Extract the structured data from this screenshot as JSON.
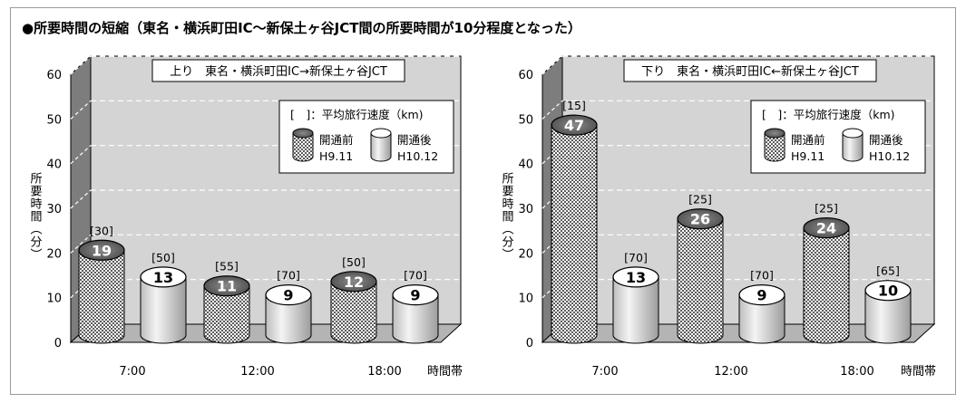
{
  "title": "●所要時間の短縮（東名・横浜町田IC〜新保土ヶ谷JCT間の所要時間が10分程度となった）",
  "chart_data": [
    {
      "type": "bar",
      "title": "上り　東名・横浜町田IC→新保土ヶ谷JCT",
      "ylabel": "所要時間（分）",
      "xlabel": "時間帯",
      "ylim": [
        0,
        60
      ],
      "yticks": [
        "0",
        "10",
        "20",
        "30",
        "40",
        "50",
        "60"
      ],
      "categories": [
        "7:00",
        "12:00",
        "18:00"
      ],
      "legend": {
        "title": "[　]：平均旅行速度（km)",
        "before_label": "開通前",
        "before_date": "H9.11",
        "after_label": "開通後",
        "after_date": "H10.12",
        "position": "top-right"
      },
      "series": [
        {
          "name": "開通前",
          "values": [
            19,
            11,
            12
          ],
          "value_labels": [
            "19",
            "11",
            "12"
          ],
          "speed_labels": [
            "[30]",
            "[55]",
            "[50]"
          ]
        },
        {
          "name": "開通後",
          "values": [
            13,
            9,
            9
          ],
          "value_labels": [
            "13",
            "9",
            "9"
          ],
          "speed_labels": [
            "[50]",
            "[70]",
            "[70]"
          ]
        }
      ]
    },
    {
      "type": "bar",
      "title": "下り　東名・横浜町田IC←新保土ヶ谷JCT",
      "ylabel": "所要時間（分）",
      "xlabel": "時間帯",
      "ylim": [
        0,
        60
      ],
      "yticks": [
        "0",
        "10",
        "20",
        "30",
        "40",
        "50",
        "60"
      ],
      "categories": [
        "7:00",
        "12:00",
        "18:00"
      ],
      "legend": {
        "title": "[　]：平均旅行速度（km)",
        "before_label": "開通前",
        "before_date": "H9.11",
        "after_label": "開通後",
        "after_date": "H10.12",
        "position": "top-right"
      },
      "series": [
        {
          "name": "開通前",
          "values": [
            47,
            26,
            24
          ],
          "value_labels": [
            "47",
            "26",
            "24"
          ],
          "speed_labels": [
            "[15]",
            "[25]",
            "[25]"
          ]
        },
        {
          "name": "開通後",
          "values": [
            13,
            9,
            10
          ],
          "value_labels": [
            "13",
            "9",
            "10"
          ],
          "speed_labels": [
            "[70]",
            "[70]",
            "[65]"
          ]
        }
      ]
    }
  ]
}
